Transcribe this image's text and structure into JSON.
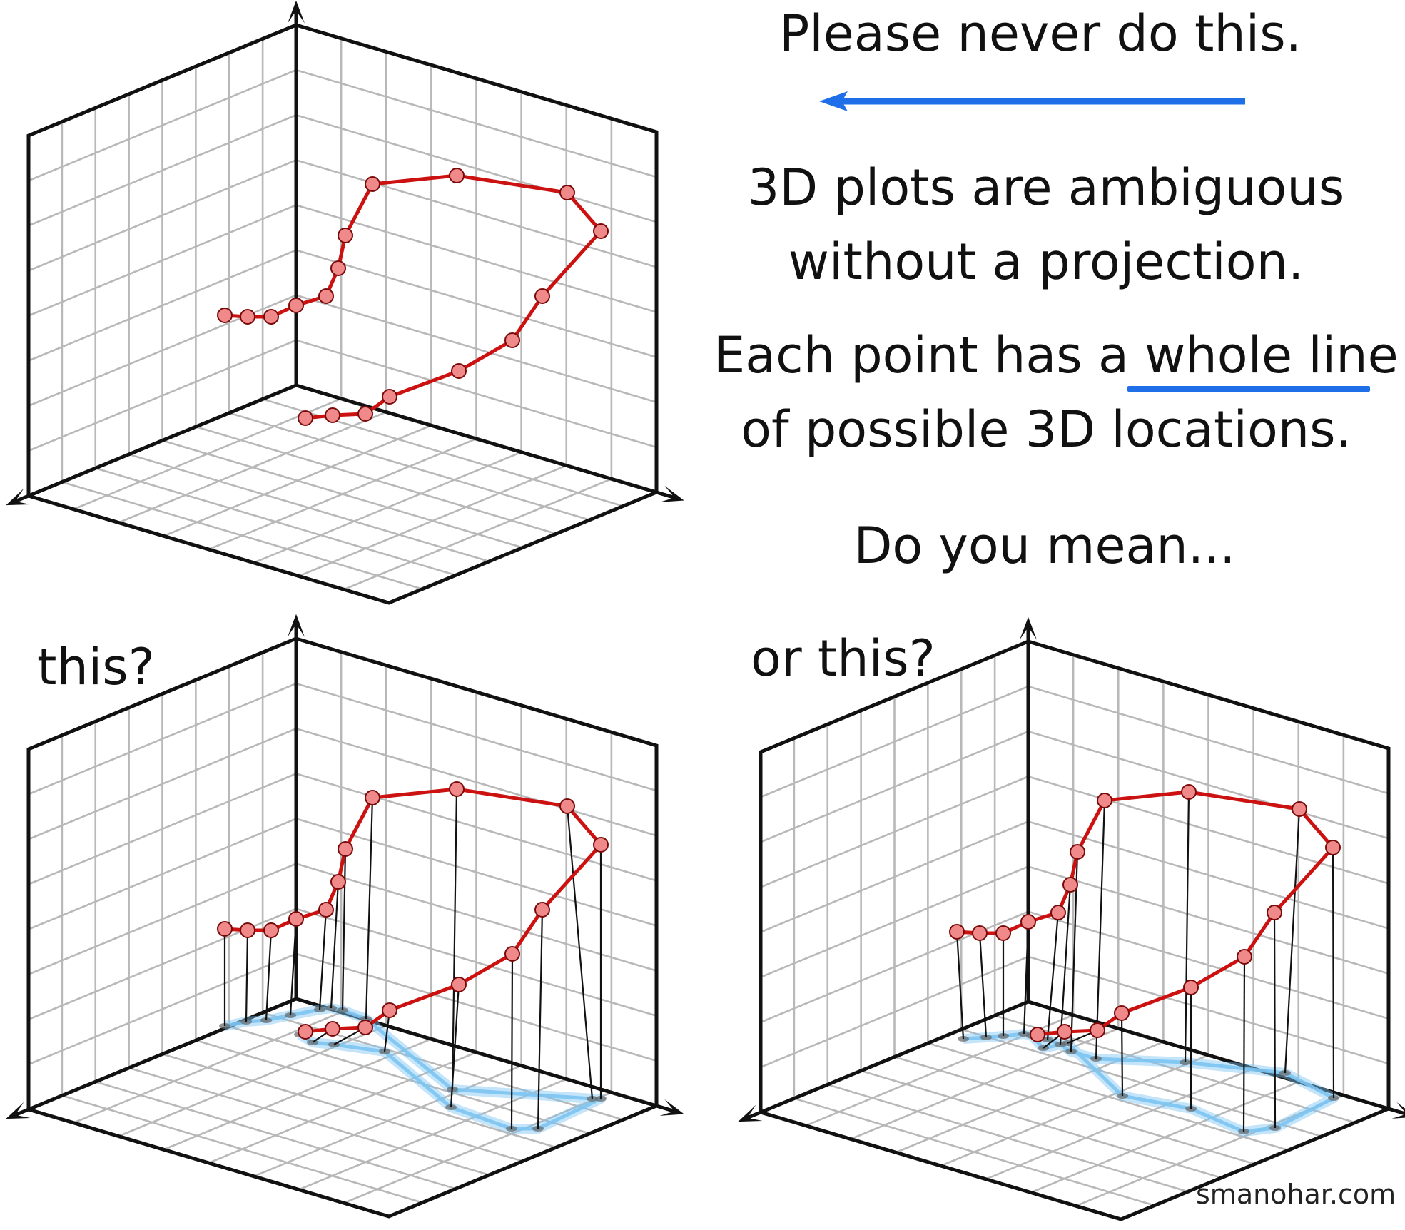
{
  "texts": {
    "heading": "Please never do this.",
    "line1": "3D plots are ambiguous",
    "line2": "without a projection.",
    "line3_pre": "Each point has a ",
    "line3_underlined": "whole line",
    "line4": "of possible 3D locations.",
    "question": "Do you mean...",
    "label_left": "this?",
    "label_right": "or this?",
    "credit": "smanohar.com"
  },
  "colors": {
    "curve": "#cc1111",
    "marker_fill": "#f08a8a",
    "grid": "#b8b8b8",
    "axis": "#111111",
    "projection_glow": "#7cc4f2",
    "arrow": "#1f6fe8"
  },
  "icons": {
    "arrow": "arrow-left-icon"
  },
  "chart_data": {
    "type": "3d-line-diagram",
    "panels": [
      "ambiguous",
      "projection-a",
      "projection-b"
    ],
    "projection_shown": {
      "ambiguous": false,
      "projection-a": true,
      "projection-b": true
    },
    "curve_points": 18
  }
}
